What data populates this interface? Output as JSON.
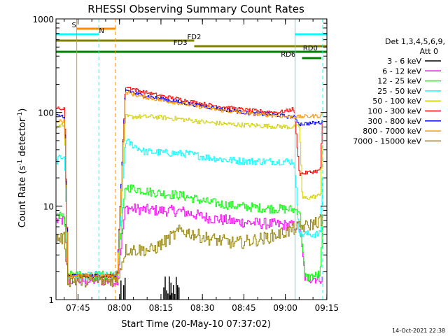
{
  "chart_data": {
    "type": "line",
    "title": "RHESSI Observing Summary Count Rates",
    "xlabel": "Start Time (20-May-10 07:37:02)",
    "ylabel": "Count Rate (s",
    "ylabel_sup1": "-1",
    "ylabel_mid": " detector",
    "ylabel_sup2": "-1",
    "ylabel_end": ")",
    "yscale": "log",
    "ylim": [
      1,
      1000
    ],
    "xlim_minutes": [
      0,
      98
    ],
    "x_tick_labels": [
      {
        "label": "07:45",
        "minute": 7.97
      },
      {
        "label": "08:00",
        "minute": 22.97
      },
      {
        "label": "08:15",
        "minute": 37.97
      },
      {
        "label": "08:30",
        "minute": 52.97
      },
      {
        "label": "08:45",
        "minute": 67.97
      },
      {
        "label": "09:00",
        "minute": 82.97
      },
      {
        "label": "09:15",
        "minute": 97.97
      }
    ],
    "y_tick_labels": [
      {
        "label": "1",
        "value": 1
      },
      {
        "label": "10",
        "value": 10
      },
      {
        "label": "100",
        "value": 100
      },
      {
        "label": "1000",
        "value": 1000
      }
    ],
    "legend": {
      "position": "right",
      "header_line1": "Det 1,3,4,5,6,9,",
      "header_line2": "Att 0",
      "entries": [
        {
          "label": "3 - 6 keV",
          "color": "#000000"
        },
        {
          "label": "6 - 12 keV",
          "color": "#ff00ff"
        },
        {
          "label": "12 - 25 keV",
          "color": "#00ff00"
        },
        {
          "label": "25 - 50 keV",
          "color": "#00ffff"
        },
        {
          "label": "50 - 100 keV",
          "color": "#d2d200"
        },
        {
          "label": "100 - 300 keV",
          "color": "#ff0000"
        },
        {
          "label": "300 - 800 keV",
          "color": "#0000ff"
        },
        {
          "label": "800 - 7000 keV",
          "color": "#ff9600"
        },
        {
          "label": "7000 - 15000 keV",
          "color": "#968200"
        }
      ]
    },
    "flag_bars": [
      {
        "label": "S",
        "color": "#ff8c00",
        "start": 7.5,
        "end": 21.5,
        "level": 1
      },
      {
        "label": "N",
        "color": "#00ffff",
        "start": 0,
        "end": 15.5,
        "level": 2
      },
      {
        "label": "N",
        "color": "#00ffff",
        "start": 86.5,
        "end": 98,
        "level": 2
      },
      {
        "label": "FD2",
        "color": "#808000",
        "start": 0,
        "end": 50,
        "level": 3
      },
      {
        "label": "FD3",
        "color": "#808000",
        "start": 50,
        "end": 98,
        "level": 4
      },
      {
        "label": "",
        "color": "#008000",
        "start": 0,
        "end": 98,
        "level": 5
      },
      {
        "label": "RD0",
        "color": "#008000",
        "start": 95.5,
        "end": 97.5,
        "level": 5
      },
      {
        "label": "RD6",
        "color": "#008000",
        "start": 89,
        "end": 96,
        "level": 6
      }
    ],
    "flag_labels": [
      {
        "text": "S",
        "color": "#ff8c00",
        "minute": 6.5,
        "level": 1
      },
      {
        "text": "N",
        "color": "#00ffff",
        "minute": 16.5,
        "level": 2
      },
      {
        "text": "FD2",
        "color": "#808000",
        "minute": 50,
        "level": 3
      },
      {
        "text": "FD3",
        "color": "#808000",
        "minute": 45,
        "level": 4
      },
      {
        "text": "RD0",
        "color": "#008000",
        "minute": 92,
        "level": 5
      },
      {
        "text": "RD6",
        "color": "#008000",
        "minute": 84,
        "level": 6
      }
    ],
    "vertical_lines": [
      {
        "minute": 7.5,
        "color": "#ff8c00",
        "dashed": false
      },
      {
        "minute": 15.5,
        "color": "#00ffff",
        "dashed": true
      },
      {
        "minute": 21.5,
        "color": "#ff8c00",
        "dashed": true
      },
      {
        "minute": 86.5,
        "color": "#00ffff",
        "dashed": false
      },
      {
        "minute": 96.5,
        "color": "#00ffff",
        "dashed": true
      }
    ],
    "series": [
      {
        "name": "3 - 6 keV",
        "color": "#000000",
        "noise": 0.0,
        "x": [],
        "y": []
      },
      {
        "name": "6 - 12 keV",
        "color": "#ff00ff",
        "noise": 0.06,
        "x": [
          0,
          3,
          4.2,
          17,
          22,
          25,
          35,
          45,
          55,
          65,
          75,
          85,
          88,
          90,
          94,
          95.5,
          96.5
        ],
        "y": [
          7.0,
          7.0,
          1.6,
          1.6,
          1.6,
          9.5,
          9.0,
          8.8,
          7.5,
          6.8,
          6.5,
          6.2,
          6.0,
          1.7,
          1.7,
          1.7,
          1.6
        ]
      },
      {
        "name": "12 - 25 keV",
        "color": "#00ff00",
        "noise": 0.05,
        "x": [
          0,
          3,
          4.2,
          17,
          22,
          25,
          35,
          45,
          55,
          65,
          75,
          85,
          88,
          90,
          94,
          95.5,
          96.5
        ],
        "y": [
          8.0,
          8.0,
          1.8,
          1.8,
          1.8,
          16.0,
          14.0,
          13.0,
          11.0,
          10.0,
          9.5,
          9.2,
          9.0,
          1.7,
          1.8,
          1.9,
          8.5
        ]
      },
      {
        "name": "25 - 50 keV",
        "color": "#00ffff",
        "noise": 0.04,
        "x": [
          0,
          3,
          4.2,
          17,
          22,
          25,
          32,
          40,
          48,
          55,
          62,
          70,
          78,
          84,
          86,
          88,
          95.5,
          96.5
        ],
        "y": [
          30,
          36,
          1.8,
          1.8,
          1.8,
          50,
          38,
          37,
          36,
          33,
          31,
          30,
          30,
          30,
          30,
          5.0,
          5.0,
          30
        ]
      },
      {
        "name": "50 - 100 keV",
        "color": "#d2d200",
        "noise": 0.025,
        "x": [
          0,
          3,
          4.2,
          17,
          22,
          25,
          35,
          45,
          55,
          65,
          75,
          85,
          88,
          89,
          95.5,
          96.5
        ],
        "y": [
          70,
          75,
          1.8,
          1.8,
          1.8,
          90,
          90,
          85,
          78,
          74,
          72,
          70,
          70,
          12,
          13,
          70
        ]
      },
      {
        "name": "100 - 300 keV",
        "color": "#ff0000",
        "noise": 0.02,
        "x": [
          0,
          3,
          4.2,
          17,
          22,
          25,
          30,
          38,
          45,
          52,
          60,
          70,
          80,
          84,
          86,
          88,
          95.5,
          96.5
        ],
        "y": [
          110,
          108,
          1.8,
          1.8,
          1.8,
          190,
          170,
          150,
          138,
          125,
          115,
          105,
          100,
          105,
          110,
          22,
          24,
          125
        ]
      },
      {
        "name": "300 - 800 keV",
        "color": "#0000ff",
        "noise": 0.02,
        "x": [
          0,
          3,
          4.2,
          17,
          22,
          25,
          30,
          38,
          45,
          52,
          60,
          70,
          80,
          84,
          86,
          88,
          95.5,
          96.5
        ],
        "y": [
          92,
          92,
          1.8,
          1.8,
          1.8,
          175,
          155,
          140,
          128,
          118,
          108,
          98,
          94,
          90,
          90,
          75,
          78,
          80
        ]
      },
      {
        "name": "800 - 7000 keV",
        "color": "#ff9600",
        "noise": 0.02,
        "x": [
          0,
          3,
          4.2,
          17,
          22,
          25,
          30,
          38,
          45,
          52,
          60,
          70,
          80,
          84,
          86,
          88,
          95.5,
          96.5
        ],
        "y": [
          82,
          82,
          1.8,
          1.8,
          1.8,
          165,
          150,
          135,
          125,
          115,
          105,
          97,
          92,
          90,
          90,
          90,
          92,
          95
        ]
      },
      {
        "name": "7000 - 15000 keV",
        "color": "#968200",
        "noise": 0.07,
        "x": [
          0,
          3,
          4.2,
          17,
          22,
          25,
          35,
          45,
          55,
          65,
          75,
          85,
          88,
          90,
          95.5,
          96.5
        ],
        "y": [
          4.5,
          4.5,
          1.6,
          1.6,
          1.6,
          3.4,
          3.4,
          5.5,
          4.5,
          4.0,
          4.5,
          5.5,
          6.0,
          6.0,
          7.0,
          7.5
        ]
      }
    ],
    "black_spikes_minutes": [
      23.5,
      24.5,
      25.0,
      39,
      39.5,
      40,
      40.5,
      41,
      41.3,
      41.6,
      42,
      42.5,
      43,
      43.5,
      44,
      44.5
    ]
  },
  "timestamp": "14-Oct-2021 22:38"
}
